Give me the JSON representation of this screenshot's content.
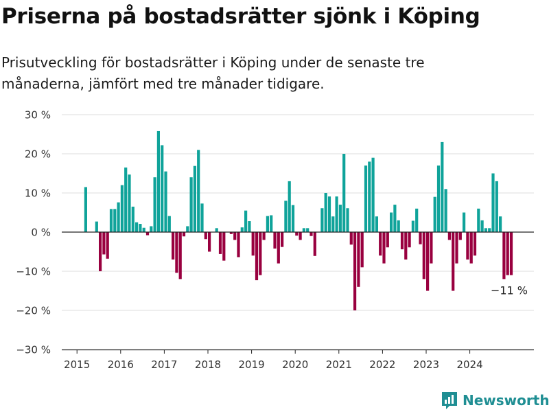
{
  "title": "Priserna på bostadsrätter sjönk i Köping",
  "subtitle": "Prisutveckling för bostadsrätter i Köping under de senaste tre månaderna, jämfört med tre månader tidigare.",
  "brand": {
    "name": "Newsworthy"
  },
  "colors": {
    "positive": "#0fa39a",
    "negative": "#99003f",
    "grid": "#dddddd",
    "axis": "#222222",
    "brand": "#1f8e93"
  },
  "chart_data": {
    "type": "bar",
    "grid": true,
    "ylim": [
      -30,
      30
    ],
    "yticks": [
      {
        "value": 30,
        "label": "30 %"
      },
      {
        "value": 20,
        "label": "20 %"
      },
      {
        "value": 10,
        "label": "10 %"
      },
      {
        "value": 0,
        "label": "0 %"
      },
      {
        "value": -10,
        "label": "−10 %"
      },
      {
        "value": -20,
        "label": "−20 %"
      },
      {
        "value": -30,
        "label": "−30 %"
      }
    ],
    "xticks": [
      "2015",
      "2016",
      "2017",
      "2018",
      "2019",
      "2020",
      "2021",
      "2022",
      "2023",
      "2024"
    ],
    "start": "2015-01",
    "values": [
      null,
      null,
      11.5,
      null,
      null,
      2.7,
      -10,
      -5.7,
      -6.8,
      5.9,
      5.9,
      7.6,
      12,
      16.5,
      14.7,
      6.5,
      2.5,
      2.1,
      1.1,
      -0.8,
      1.5,
      14,
      25.8,
      22.2,
      15.5,
      4.1,
      -7,
      -10.4,
      -12,
      -1.1,
      1.5,
      14,
      16.9,
      21,
      7.3,
      -1.8,
      -5,
      0,
      1,
      -5.6,
      -7.3,
      0,
      -0.5,
      -2,
      -6.4,
      1.2,
      5.5,
      2.8,
      -6,
      -12.3,
      -11,
      -2,
      4.1,
      4.3,
      -4.2,
      -8,
      -3.8,
      8,
      13,
      6.9,
      -0.9,
      -2,
      1,
      1,
      -1,
      -6.1,
      0,
      6.1,
      10,
      9.1,
      4,
      9.1,
      7,
      20,
      6.1,
      -3.2,
      -20,
      -14,
      -9,
      17,
      18,
      19,
      4,
      -6,
      -8,
      -3.9,
      5,
      7,
      3,
      -4.4,
      -7,
      -3.9,
      2.9,
      6,
      -3.1,
      -12,
      -15,
      -8,
      9,
      17,
      23,
      11,
      -2,
      -15,
      -8,
      -2,
      5,
      -7,
      -8,
      -6,
      6,
      3,
      1,
      1,
      15,
      13,
      4,
      -12,
      -11,
      -11
    ],
    "annotation": {
      "label": "−11 %"
    }
  }
}
